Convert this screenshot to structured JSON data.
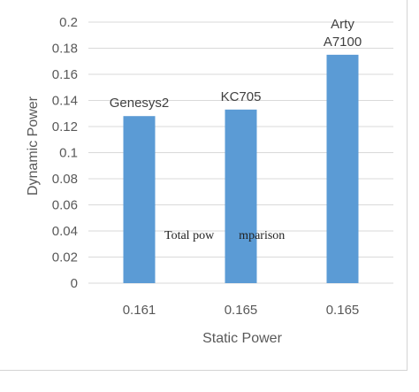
{
  "colors": {
    "bar": "#5b9bd5",
    "axis_text": "#595959",
    "gridline": "#d9d9d9"
  },
  "chart_data": {
    "type": "bar",
    "title": "",
    "xlabel": "Static Power",
    "ylabel": "Dynamic Power",
    "categories": [
      "0.161",
      "0.165",
      "0.165"
    ],
    "values": [
      0.128,
      0.133,
      0.175
    ],
    "data_labels": [
      [
        "Genesys2"
      ],
      [
        "KC705"
      ],
      [
        "Arty",
        "A7100"
      ]
    ],
    "ylim": [
      0,
      0.2
    ],
    "yticks": [
      "0",
      "0.02",
      "0.04",
      "0.06",
      "0.08",
      "0.1",
      "0.12",
      "0.14",
      "0.16",
      "0.18",
      "0.2"
    ],
    "grid": true,
    "overlay_annotation": "Total pow        mparison"
  },
  "caption": ""
}
